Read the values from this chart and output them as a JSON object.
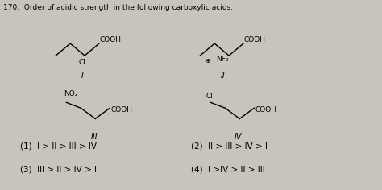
{
  "title": "170.  Order of acidic strength in the following carboxylic acids:",
  "bg_color": "#c8c4bc",
  "options": [
    "(1)  I > II > III > IV",
    "(2)  II > III > IV > I",
    "(3)  III > II > IV > I",
    "(4)  I >IV > II > III"
  ]
}
